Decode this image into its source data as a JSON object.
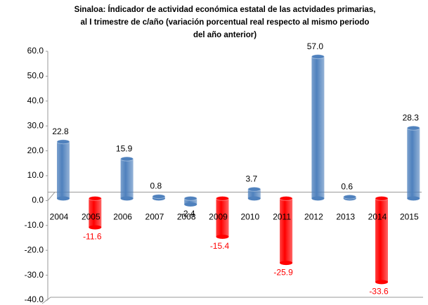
{
  "chart_data": {
    "type": "bar",
    "title": [
      "Sinaloa: Índicador de actividad económica estatal de las actvidades primarias,",
      "al I trimestre de c/año (variación porcentual real respecto al mismo periodo",
      "del año anterior)"
    ],
    "categories": [
      "2004",
      "2005",
      "2006",
      "2007",
      "2008",
      "2009",
      "2010",
      "2011",
      "2012",
      "2013",
      "2014",
      "2015"
    ],
    "values": [
      22.8,
      -11.6,
      15.9,
      0.8,
      -2.4,
      -15.4,
      3.7,
      -25.9,
      57.0,
      0.6,
      -33.6,
      28.3
    ],
    "value_labels": [
      "22.8",
      "-11.6",
      "15.9",
      "0.8",
      "-2.4",
      "-15.4",
      "3.7",
      "-25.9",
      "57.0",
      "0.6",
      "-33.6",
      "28.3"
    ],
    "colors": [
      "#4f81bd",
      "#ff0000",
      "#4f81bd",
      "#4f81bd",
      "#4f81bd",
      "#ff0000",
      "#4f81bd",
      "#ff0000",
      "#4f81bd",
      "#4f81bd",
      "#ff0000",
      "#4f81bd"
    ],
    "label_colors": [
      "#000000",
      "#ff0000",
      "#000000",
      "#000000",
      "#000000",
      "#ff0000",
      "#000000",
      "#ff0000",
      "#000000",
      "#000000",
      "#ff0000",
      "#000000"
    ],
    "ylim": [
      -40,
      60
    ],
    "yticks": [
      {
        "value": -40,
        "label": "-40.0"
      },
      {
        "value": -30,
        "label": "-30.0"
      },
      {
        "value": -20,
        "label": "-20.0"
      },
      {
        "value": -10,
        "label": "-10.0"
      },
      {
        "value": 0,
        "label": "0.0"
      },
      {
        "value": 10,
        "label": "10.0"
      },
      {
        "value": 20,
        "label": "20.0"
      },
      {
        "value": 30,
        "label": "30.0"
      },
      {
        "value": 40,
        "label": "40.0"
      },
      {
        "value": 50,
        "label": "50.0"
      },
      {
        "value": 60,
        "label": "60.0"
      }
    ],
    "grid": false
  }
}
